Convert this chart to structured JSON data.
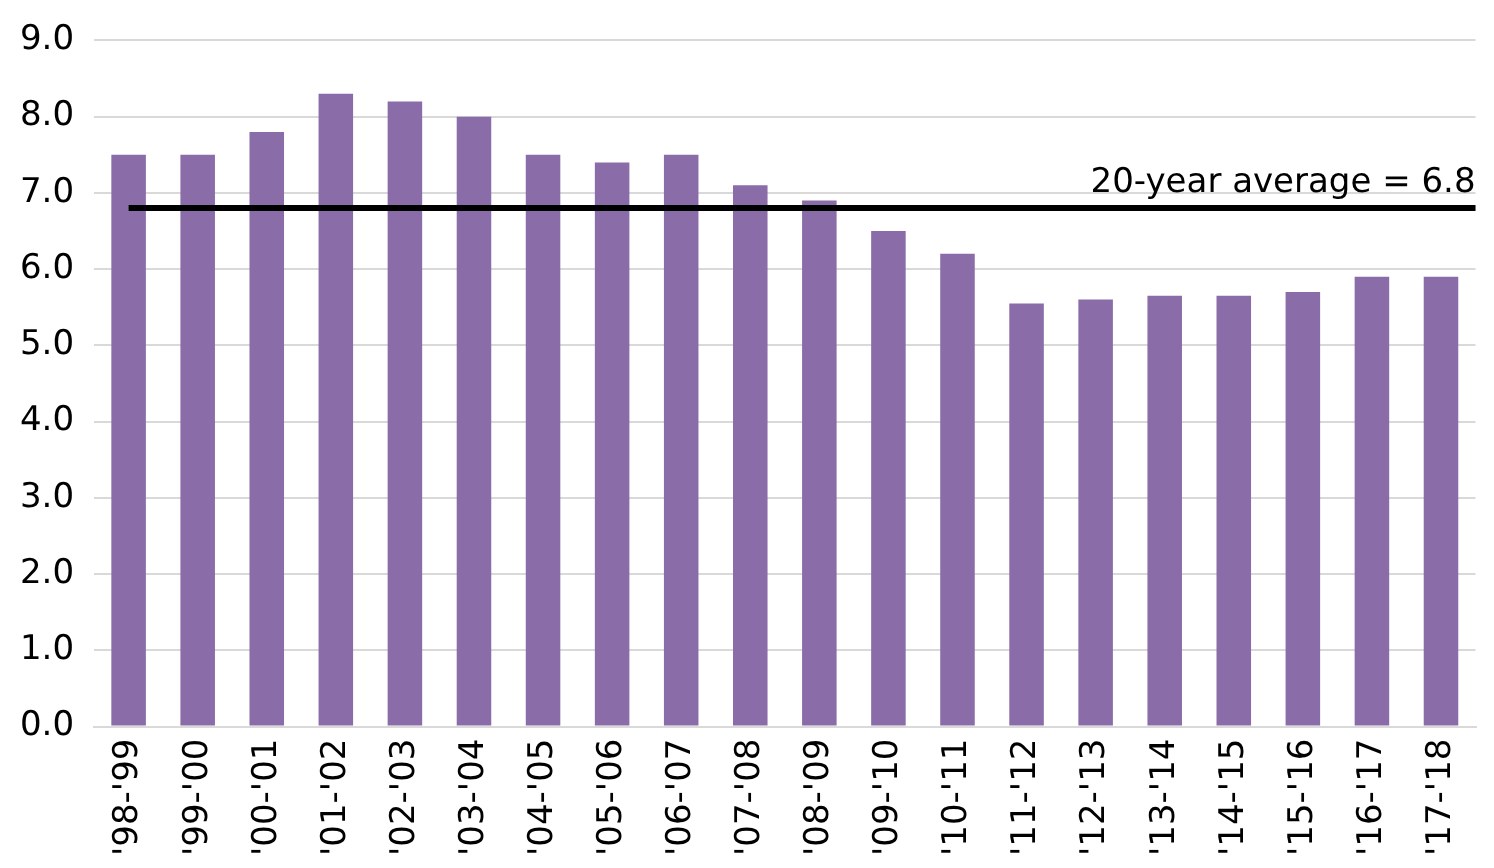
{
  "chart_data": {
    "type": "bar",
    "categories": [
      "'98-'99",
      "'99-'00",
      "'00-'01",
      "'01-'02",
      "'02-'03",
      "'03-'04",
      "'04-'05",
      "'05-'06",
      "'06-'07",
      "'07-'08",
      "'08-'09",
      "'09-'10",
      "'10-'11",
      "'11-'12",
      "'12-'13",
      "'13-'14",
      "'14-'15",
      "'15-'16",
      "'16-'17",
      "'17-'18"
    ],
    "values": [
      7.5,
      7.5,
      7.8,
      8.3,
      8.2,
      8.0,
      7.5,
      7.4,
      7.5,
      7.1,
      6.9,
      6.5,
      6.2,
      5.55,
      5.6,
      5.65,
      5.65,
      5.7,
      5.9,
      5.9
    ],
    "color": "#8a6ca8",
    "ylim": [
      0,
      9
    ],
    "yticks": [
      {
        "value": 0,
        "label": "0.0"
      },
      {
        "value": 1,
        "label": "1.0"
      },
      {
        "value": 2,
        "label": "2.0"
      },
      {
        "value": 3,
        "label": "3.0"
      },
      {
        "value": 4,
        "label": "4.0"
      },
      {
        "value": 5,
        "label": "5.0"
      },
      {
        "value": 6,
        "label": "6.0"
      },
      {
        "value": 7,
        "label": "7.0"
      },
      {
        "value": 8,
        "label": "8.0"
      },
      {
        "value": 9,
        "label": "9.0"
      }
    ],
    "grid": "y",
    "ref_lines": [
      {
        "axis": "y",
        "value": 6.8,
        "label": "20-year average = 6.8",
        "color": "#000000"
      }
    ]
  }
}
